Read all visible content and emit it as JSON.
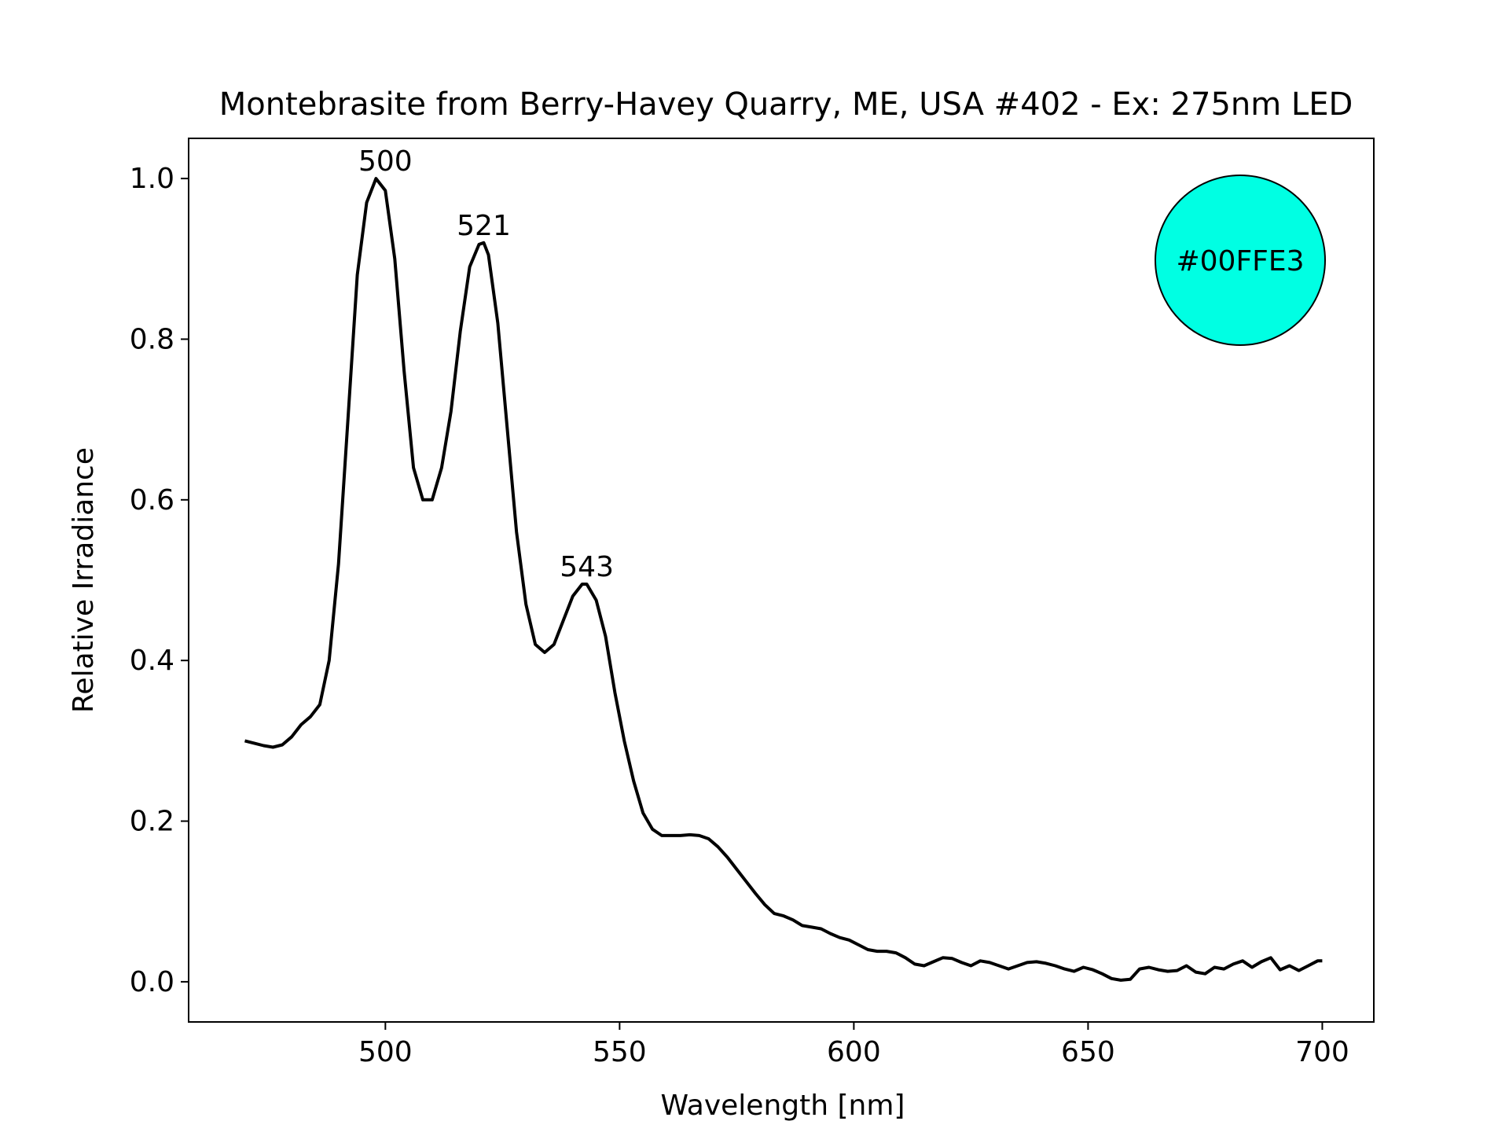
{
  "chart_data": {
    "type": "line",
    "title": "Montebrasite from Berry-Havey Quarry, ME, USA #402 - Ex: 275nm LED",
    "xlabel": "Wavelength [nm]",
    "ylabel": "Relative Irradiance",
    "xlim": [
      458,
      711
    ],
    "ylim": [
      -0.05,
      1.05
    ],
    "x_ticks": [
      500,
      550,
      600,
      650,
      700
    ],
    "y_ticks": [
      0.0,
      0.2,
      0.4,
      0.6,
      0.8,
      1.0
    ],
    "x_tick_labels": [
      "500",
      "550",
      "600",
      "650",
      "700"
    ],
    "y_tick_labels": [
      "0.0",
      "0.2",
      "0.4",
      "0.6",
      "0.8",
      "1.0"
    ],
    "grid": false,
    "legend": false,
    "line_color": "#000000",
    "series": [
      {
        "x": [
          470,
          472,
          474,
          476,
          478,
          480,
          482,
          484,
          486,
          488,
          490,
          492,
          494,
          496,
          498,
          500,
          502,
          504,
          506,
          508,
          510,
          512,
          514,
          516,
          518,
          520,
          521,
          522,
          524,
          526,
          528,
          530,
          532,
          534,
          536,
          538,
          540,
          542,
          543,
          545,
          547,
          549,
          551,
          553,
          555,
          557,
          559,
          561,
          563,
          565,
          567,
          569,
          571,
          573,
          575,
          577,
          579,
          581,
          583,
          585,
          587,
          589,
          591,
          593,
          595,
          597,
          599,
          601,
          603,
          605,
          607,
          609,
          611,
          613,
          615,
          617,
          619,
          621,
          623,
          625,
          627,
          629,
          631,
          633,
          635,
          637,
          639,
          641,
          643,
          645,
          647,
          649,
          651,
          653,
          655,
          657,
          659,
          661,
          663,
          665,
          667,
          669,
          671,
          673,
          675,
          677,
          679,
          681,
          683,
          685,
          687,
          689,
          691,
          693,
          695,
          697,
          699,
          700
        ],
        "y": [
          0.3,
          0.297,
          0.294,
          0.292,
          0.295,
          0.305,
          0.32,
          0.33,
          0.345,
          0.4,
          0.52,
          0.7,
          0.88,
          0.97,
          1.0,
          0.985,
          0.9,
          0.76,
          0.64,
          0.6,
          0.6,
          0.64,
          0.71,
          0.81,
          0.89,
          0.918,
          0.92,
          0.905,
          0.82,
          0.69,
          0.56,
          0.47,
          0.42,
          0.41,
          0.42,
          0.45,
          0.48,
          0.495,
          0.495,
          0.475,
          0.43,
          0.36,
          0.3,
          0.25,
          0.21,
          0.19,
          0.182,
          0.182,
          0.182,
          0.183,
          0.182,
          0.178,
          0.168,
          0.155,
          0.14,
          0.125,
          0.11,
          0.096,
          0.085,
          0.082,
          0.077,
          0.07,
          0.068,
          0.066,
          0.06,
          0.055,
          0.052,
          0.046,
          0.04,
          0.038,
          0.038,
          0.036,
          0.03,
          0.022,
          0.02,
          0.025,
          0.03,
          0.029,
          0.024,
          0.02,
          0.026,
          0.024,
          0.02,
          0.016,
          0.02,
          0.024,
          0.025,
          0.023,
          0.02,
          0.016,
          0.013,
          0.018,
          0.015,
          0.01,
          0.004,
          0.002,
          0.003,
          0.016,
          0.018,
          0.015,
          0.013,
          0.014,
          0.02,
          0.012,
          0.01,
          0.018,
          0.016,
          0.022,
          0.026,
          0.018,
          0.025,
          0.03,
          0.015,
          0.02,
          0.014,
          0.02,
          0.026,
          0.026
        ]
      }
    ],
    "annotations": [
      {
        "x": 500,
        "y": 1.0,
        "text": "500"
      },
      {
        "x": 521,
        "y": 0.92,
        "text": "521"
      },
      {
        "x": 543,
        "y": 0.495,
        "text": "543"
      }
    ],
    "color_swatch": {
      "label": "#00FFE3",
      "color": "#00FFE3"
    }
  }
}
